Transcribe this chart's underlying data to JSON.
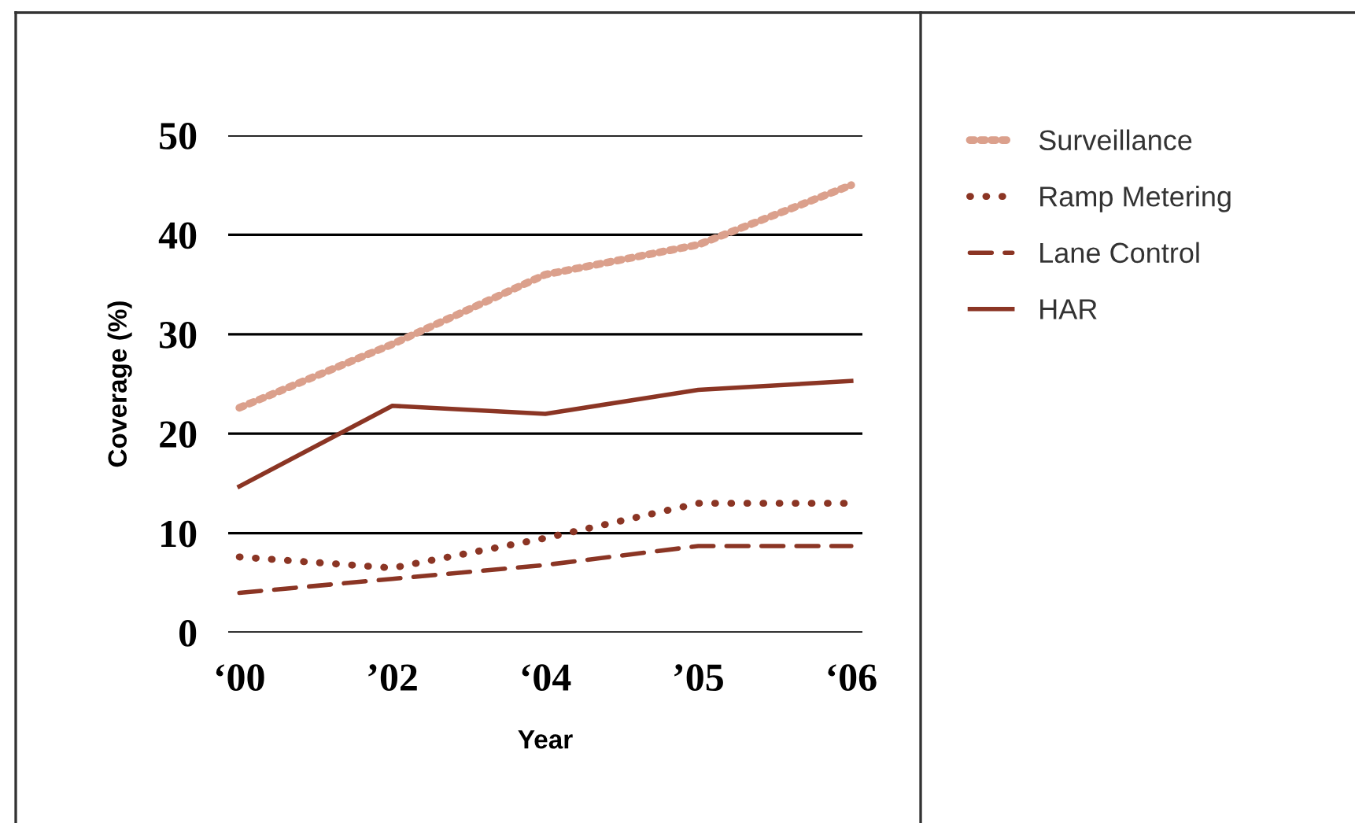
{
  "chart_data": {
    "type": "line",
    "xlabel": "Year",
    "ylabel": "Coverage (%)",
    "categories": [
      "‘00",
      "’02",
      "‘04",
      "’05",
      "‘06"
    ],
    "series": [
      {
        "name": "Surveillance",
        "color": "#dba08c",
        "line_style": "dotted",
        "values": [
          22.6,
          29,
          36,
          39,
          45
        ]
      },
      {
        "name": "Ramp Metering",
        "color": "#8b3524",
        "line_style": "dotted",
        "values": [
          7.6,
          6.5,
          9.5,
          13,
          13
        ]
      },
      {
        "name": "Lane Control",
        "color": "#8b3524",
        "line_style": "dashed",
        "values": [
          4,
          5.4,
          6.8,
          8.7,
          8.7
        ]
      },
      {
        "name": "HAR",
        "color": "#8b3524",
        "line_style": "solid",
        "values": [
          14.7,
          22.8,
          22,
          24.4,
          25.3
        ]
      }
    ],
    "ylim": [
      0,
      50
    ],
    "yticks": [
      0,
      10,
      20,
      30,
      40,
      50
    ],
    "grid": "y",
    "legend": "right",
    "marker": "none"
  }
}
